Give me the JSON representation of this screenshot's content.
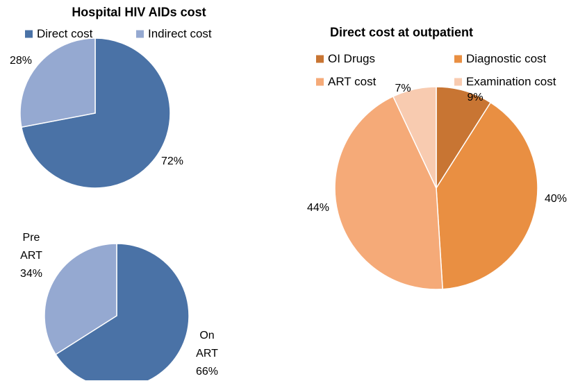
{
  "chart_data": [
    {
      "type": "pie",
      "title": "Hospital HIV AIDs cost",
      "categories": [
        "Direct cost",
        "Indirect cost"
      ],
      "values": [
        72,
        28
      ],
      "value_labels": [
        "72%",
        "28%"
      ],
      "colors": [
        "#4a72a6",
        "#95a9d1"
      ],
      "legend": "top"
    },
    {
      "type": "pie",
      "categories": [
        "On ART",
        "Pre ART"
      ],
      "values": [
        66,
        34
      ],
      "value_labels": [
        "66%",
        "34%"
      ],
      "colors": [
        "#4a72a6",
        "#95a9d1"
      ],
      "category_labels": true
    },
    {
      "type": "pie",
      "title": "Direct cost at outpatient",
      "categories": [
        "OI Drugs",
        "Diagnostic cost",
        "ART cost",
        "Examination cost"
      ],
      "values": [
        9,
        40,
        44,
        7
      ],
      "value_labels": [
        "9%",
        "40%",
        "44%",
        "7%"
      ],
      "colors": [
        "#c87533",
        "#e98f42",
        "#f5aa78",
        "#f8cbb0"
      ],
      "legend": "top"
    }
  ]
}
